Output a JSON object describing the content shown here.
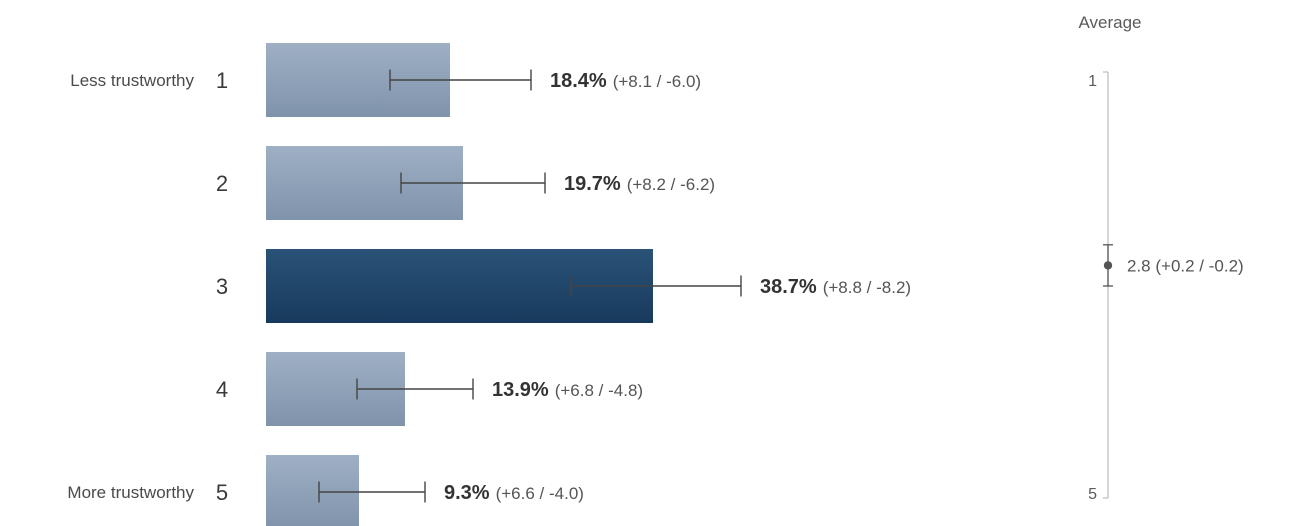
{
  "chart_data": [
    {
      "type": "bar",
      "orientation": "horizontal",
      "categories": [
        "1",
        "2",
        "3",
        "4",
        "5"
      ],
      "category_descriptions": [
        "Less trustworthy",
        "",
        "",
        "",
        "More trustworthy"
      ],
      "values": [
        18.4,
        19.7,
        38.7,
        13.9,
        9.3
      ],
      "value_labels": [
        "18.4%",
        "19.7%",
        "38.7%",
        "13.9%",
        "9.3%"
      ],
      "error_plus": [
        8.1,
        8.2,
        8.8,
        6.8,
        6.6
      ],
      "error_minus": [
        6.0,
        6.2,
        8.2,
        4.8,
        4.0
      ],
      "error_labels": [
        "(+8.1 / -6.0)",
        "(+8.2 / -6.2)",
        "(+8.8 / -8.2)",
        "(+6.8 / -4.8)",
        "(+6.6 / -4.0)"
      ],
      "highlight_index": 2,
      "colors": {
        "bar": "#8fa2b8",
        "bar_highlight": "#1f4466",
        "error_bar": "#444444"
      },
      "xlim": [
        0,
        47.5
      ],
      "grid": false,
      "legend": "none"
    },
    {
      "type": "scatter",
      "title": "Average",
      "ylim": [
        1,
        5
      ],
      "axis_ticks": [
        "1",
        "5"
      ],
      "value": 2.8,
      "error_plus": 0.2,
      "error_minus": 0.2,
      "value_label": "2.8 (+0.2 / -0.2)",
      "colors": {
        "axis": "#bbbbbb",
        "point": "#555555"
      }
    }
  ]
}
